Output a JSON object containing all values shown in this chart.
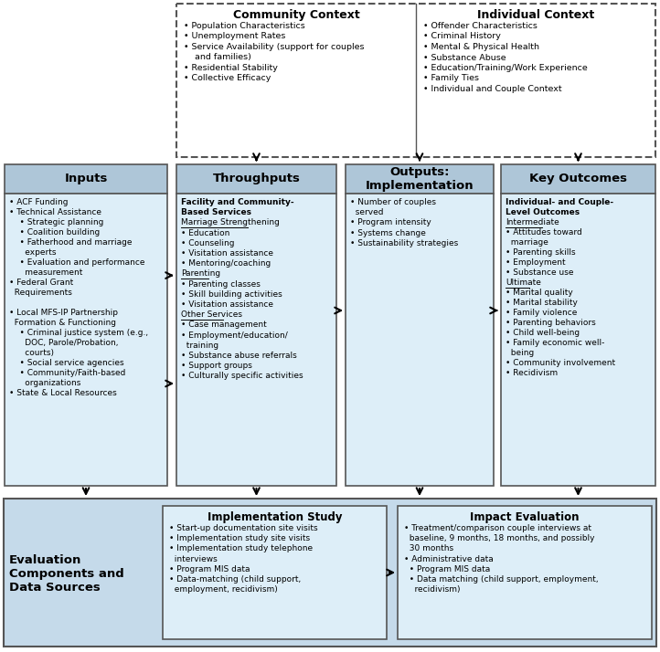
{
  "white": "#ffffff",
  "box_header_blue": "#aec6d8",
  "box_content_light": "#ddeef8",
  "eval_bg": "#c5daea",
  "eval_box": "#ddeef8",
  "fig_width": 7.22,
  "fig_height": 7.14,
  "community_title": "Community Context",
  "community_items": [
    "Population Characteristics",
    "Unemployment Rates",
    "Service Availability (support for couples\n  and families)",
    "Residential Stability",
    "Collective Efficacy"
  ],
  "individual_title": "Individual Context",
  "individual_items": [
    "Offender Characteristics",
    "Criminal History",
    "Mental & Physical Health",
    "Substance Abuse",
    "Education/Training/Work Experience",
    "Family Ties",
    "Individual and Couple Context"
  ],
  "inputs_title": "Inputs",
  "throughputs_title": "Throughputs",
  "outputs_title": "Outputs:\nImplementation",
  "key_outcomes_title": "Key Outcomes",
  "inputs_lines": [
    [
      "• ACF Funding",
      false,
      false
    ],
    [
      "• Technical Assistance",
      false,
      false
    ],
    [
      "    • Strategic planning",
      false,
      false
    ],
    [
      "    • Coalition building",
      false,
      false
    ],
    [
      "    • Fatherhood and marriage",
      false,
      false
    ],
    [
      "      experts",
      false,
      false
    ],
    [
      "    • Evaluation and performance",
      false,
      false
    ],
    [
      "      measurement",
      false,
      false
    ],
    [
      "• Federal Grant",
      false,
      false
    ],
    [
      "  Requirements",
      false,
      false
    ],
    [
      "",
      false,
      false
    ],
    [
      "• Local MFS-IP Partnership",
      false,
      false
    ],
    [
      "  Formation & Functioning",
      false,
      false
    ],
    [
      "    • Criminal justice system (e.g.,",
      false,
      false
    ],
    [
      "      DOC, Parole/Probation,",
      false,
      false
    ],
    [
      "      courts)",
      false,
      false
    ],
    [
      "    • Social service agencies",
      false,
      false
    ],
    [
      "    • Community/Faith-based",
      false,
      false
    ],
    [
      "      organizations",
      false,
      false
    ],
    [
      "• State & Local Resources",
      false,
      false
    ]
  ],
  "throughputs_lines": [
    [
      "Facility and Community-",
      true,
      false
    ],
    [
      "Based Services",
      true,
      false
    ],
    [
      "Marriage Strengthening",
      false,
      true
    ],
    [
      "• Education",
      false,
      false
    ],
    [
      "• Counseling",
      false,
      false
    ],
    [
      "• Visitation assistance",
      false,
      false
    ],
    [
      "• Mentoring/coaching",
      false,
      false
    ],
    [
      "Parenting",
      false,
      true
    ],
    [
      "• Parenting classes",
      false,
      false
    ],
    [
      "• Skill building activities",
      false,
      false
    ],
    [
      "• Visitation assistance",
      false,
      false
    ],
    [
      "Other Services",
      false,
      true
    ],
    [
      "• Case management",
      false,
      false
    ],
    [
      "• Employment/education/",
      false,
      false
    ],
    [
      "  training",
      false,
      false
    ],
    [
      "• Substance abuse referrals",
      false,
      false
    ],
    [
      "• Support groups",
      false,
      false
    ],
    [
      "• Culturally specific activities",
      false,
      false
    ]
  ],
  "outputs_lines": [
    [
      "• Number of couples",
      false,
      false
    ],
    [
      "  served",
      false,
      false
    ],
    [
      "• Program intensity",
      false,
      false
    ],
    [
      "• Systems change",
      false,
      false
    ],
    [
      "• Sustainability strategies",
      false,
      false
    ]
  ],
  "key_outcomes_lines": [
    [
      "Individual- and Couple-",
      true,
      false
    ],
    [
      "Level Outcomes",
      true,
      false
    ],
    [
      "Intermediate",
      false,
      true
    ],
    [
      "• Attitudes toward",
      false,
      false
    ],
    [
      "  marriage",
      false,
      false
    ],
    [
      "• Parenting skills",
      false,
      false
    ],
    [
      "• Employment",
      false,
      false
    ],
    [
      "• Substance use",
      false,
      false
    ],
    [
      "Ultimate",
      false,
      true
    ],
    [
      "• Marital quality",
      false,
      false
    ],
    [
      "• Marital stability",
      false,
      false
    ],
    [
      "• Family violence",
      false,
      false
    ],
    [
      "• Parenting behaviors",
      false,
      false
    ],
    [
      "• Child well-being",
      false,
      false
    ],
    [
      "• Family economic well-",
      false,
      false
    ],
    [
      "  being",
      false,
      false
    ],
    [
      "• Community involvement",
      false,
      false
    ],
    [
      "• Recidivism",
      false,
      false
    ]
  ],
  "eval_label": "Evaluation\nComponents and\nData Sources",
  "impl_study_title": "Implementation Study",
  "impl_study_lines": [
    "• Start-up documentation site visits",
    "• Implementation study site visits",
    "• Implementation study telephone",
    "  interviews",
    "• Program MIS data",
    "• Data-matching (child support,",
    "  employment, recidivism)"
  ],
  "impact_eval_title": "Impact Evaluation",
  "impact_eval_lines": [
    "• Treatment/comparison couple interviews at",
    "  baseline, 9 months, 18 months, and possibly",
    "  30 months",
    "• Administrative data",
    "  • Program MIS data",
    "  • Data matching (child support, employment,",
    "    recidivism)"
  ]
}
